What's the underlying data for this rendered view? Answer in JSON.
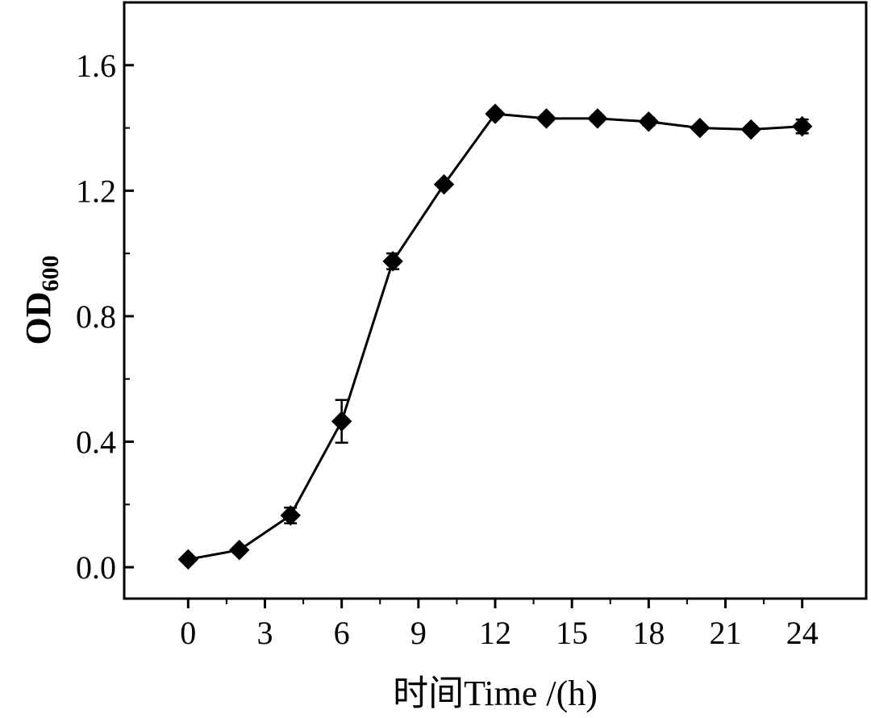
{
  "chart_data": {
    "type": "line",
    "xlabel": "时间Time /(h)",
    "ylabel": "OD",
    "ylabel_subscript": "600",
    "xlim": [
      -2.5,
      26.5
    ],
    "ylim": [
      -0.1,
      1.8
    ],
    "xticks": [
      0,
      3,
      6,
      9,
      12,
      15,
      18,
      21,
      24
    ],
    "xtick_labels": [
      "0",
      "3",
      "6",
      "9",
      "12",
      "15",
      "18",
      "21",
      "24"
    ],
    "yticks": [
      0.0,
      0.4,
      0.8,
      1.2,
      1.6
    ],
    "ytick_labels": [
      "0.0",
      "0.4",
      "0.8",
      "1.2",
      "1.6"
    ],
    "grid": false,
    "marker": "diamond",
    "colors": {
      "line": "#000000",
      "marker": "#000000",
      "axis": "#000000"
    },
    "series": [
      {
        "x": [
          0,
          2,
          4,
          6,
          8,
          10,
          12,
          14,
          16,
          18,
          20,
          22,
          24
        ],
        "values": [
          0.025,
          0.055,
          0.165,
          0.465,
          0.975,
          1.22,
          1.445,
          1.43,
          1.43,
          1.42,
          1.4,
          1.395,
          1.405
        ],
        "errors": [
          0.01,
          0.01,
          0.025,
          0.068,
          0.025,
          0.01,
          0.01,
          0.01,
          0.01,
          0.012,
          0.01,
          0.01,
          0.022
        ]
      }
    ]
  }
}
